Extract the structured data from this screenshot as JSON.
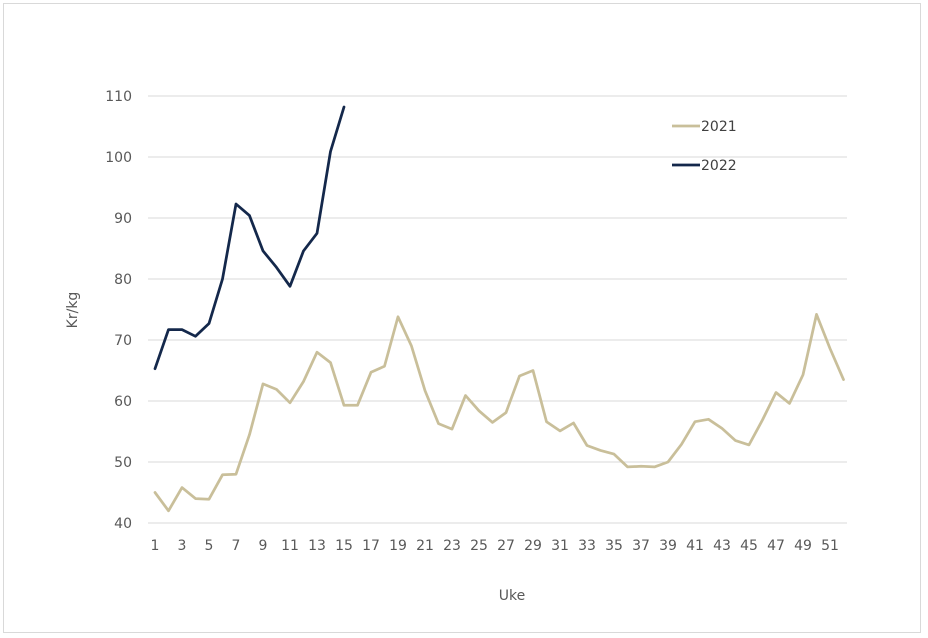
{
  "chart_data": {
    "type": "line",
    "xlabel": "Uke",
    "ylabel": "Kr/kg",
    "ylim": [
      40,
      110
    ],
    "yticks": [
      40,
      50,
      60,
      70,
      80,
      90,
      100,
      110
    ],
    "xlim": [
      1,
      52
    ],
    "xticks": [
      1,
      3,
      5,
      7,
      9,
      11,
      13,
      15,
      17,
      19,
      21,
      23,
      25,
      27,
      29,
      31,
      33,
      35,
      37,
      39,
      41,
      43,
      45,
      47,
      49,
      51
    ],
    "grid": true,
    "legend_position": "top-right",
    "series": [
      {
        "name": "2021",
        "color": "#c9bf9a",
        "x": [
          1,
          2,
          3,
          4,
          5,
          6,
          7,
          8,
          9,
          10,
          11,
          12,
          13,
          14,
          15,
          16,
          17,
          18,
          19,
          20,
          21,
          22,
          23,
          24,
          25,
          26,
          27,
          28,
          29,
          30,
          31,
          32,
          33,
          34,
          35,
          36,
          37,
          38,
          39,
          40,
          41,
          42,
          43,
          44,
          45,
          46,
          47,
          48,
          49,
          50,
          51,
          52
        ],
        "values": [
          45,
          42,
          45.8,
          44,
          43.9,
          47.9,
          48,
          54.5,
          62.8,
          61.9,
          59.7,
          63.2,
          68,
          66.3,
          59.3,
          59.3,
          64.7,
          65.7,
          73.8,
          69,
          61.7,
          56.3,
          55.4,
          60.9,
          58.4,
          56.5,
          58.1,
          64.1,
          65,
          56.6,
          55.1,
          56.4,
          52.7,
          51.9,
          51.3,
          49.2,
          49.3,
          49.2,
          50,
          52.9,
          56.6,
          57,
          55.5,
          53.5,
          52.8,
          56.9,
          61.4,
          59.6,
          64.3,
          74.2,
          68.6,
          63.5
        ]
      },
      {
        "name": "2022",
        "color": "#14284b",
        "x": [
          1,
          2,
          3,
          4,
          5,
          6,
          7,
          8,
          9,
          10,
          11,
          12,
          13,
          14,
          15
        ],
        "values": [
          65.3,
          71.7,
          71.7,
          70.6,
          72.7,
          80,
          92.3,
          90.4,
          84.6,
          81.9,
          78.8,
          84.6,
          87.5,
          100.9,
          108.2
        ]
      }
    ]
  }
}
